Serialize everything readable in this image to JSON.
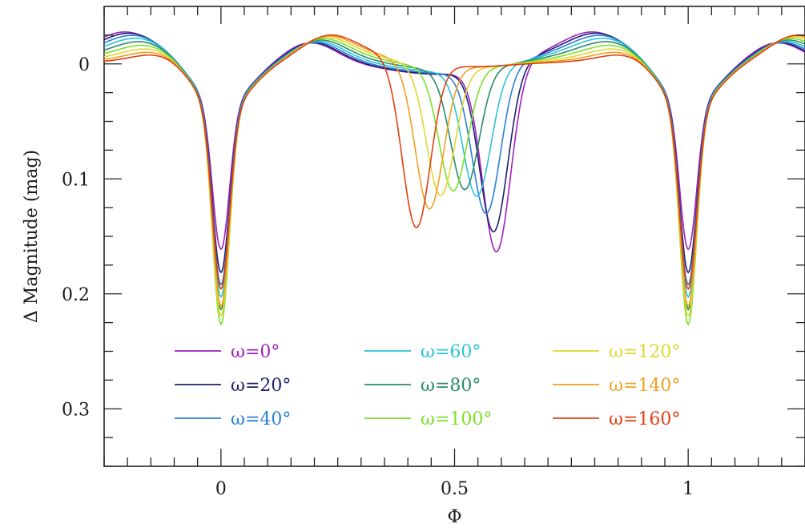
{
  "chart_data": {
    "type": "line",
    "xlabel": "Φ",
    "ylabel": "Δ Magnitude (mag)",
    "xlim": [
      -0.25,
      1.25
    ],
    "ylim": [
      0.35,
      -0.05
    ],
    "y_inverted": true,
    "x_ticks": [
      0,
      0.5,
      1
    ],
    "x_tick_labels": [
      "0",
      "0.5",
      "1"
    ],
    "x_minor_step": 0.05,
    "y_ticks": [
      0,
      0.1,
      0.2,
      0.3
    ],
    "y_tick_labels": [
      "0",
      "0.1",
      "0.2",
      "0.3"
    ],
    "y_minor_step": 0.025,
    "grid": false,
    "legend_position": "bottom-center",
    "series": [
      {
        "name": "ω=0°",
        "omega": 0,
        "color": "#a020c0",
        "primary_depth": 0.16,
        "secondary_center": 0.59,
        "secondary_depth": 0.161
      },
      {
        "name": "ω=20°",
        "omega": 20,
        "color": "#1e1e6e",
        "primary_depth": 0.18,
        "secondary_center": 0.584,
        "secondary_depth": 0.143
      },
      {
        "name": "ω=40°",
        "omega": 40,
        "color": "#2a7fd4",
        "primary_depth": 0.19,
        "secondary_center": 0.568,
        "secondary_depth": 0.126
      },
      {
        "name": "ω=60°",
        "omega": 60,
        "color": "#2ac4d8",
        "primary_depth": 0.2,
        "secondary_center": 0.548,
        "secondary_depth": 0.11
      },
      {
        "name": "ω=80°",
        "omega": 80,
        "color": "#2a8a6a",
        "primary_depth": 0.21,
        "secondary_center": 0.522,
        "secondary_depth": 0.104
      },
      {
        "name": "ω=100°",
        "omega": 100,
        "color": "#7ee02a",
        "primary_depth": 0.222,
        "secondary_center": 0.497,
        "secondary_depth": 0.106
      },
      {
        "name": "ω=120°",
        "omega": 120,
        "color": "#e0d830",
        "primary_depth": 0.214,
        "secondary_center": 0.47,
        "secondary_depth": 0.112
      },
      {
        "name": "ω=140°",
        "omega": 140,
        "color": "#f0a020",
        "primary_depth": 0.205,
        "secondary_center": 0.446,
        "secondary_depth": 0.126
      },
      {
        "name": "ω=160°",
        "omega": 160,
        "color": "#e04010",
        "primary_depth": 0.19,
        "secondary_center": 0.418,
        "secondary_depth": 0.145
      }
    ]
  }
}
